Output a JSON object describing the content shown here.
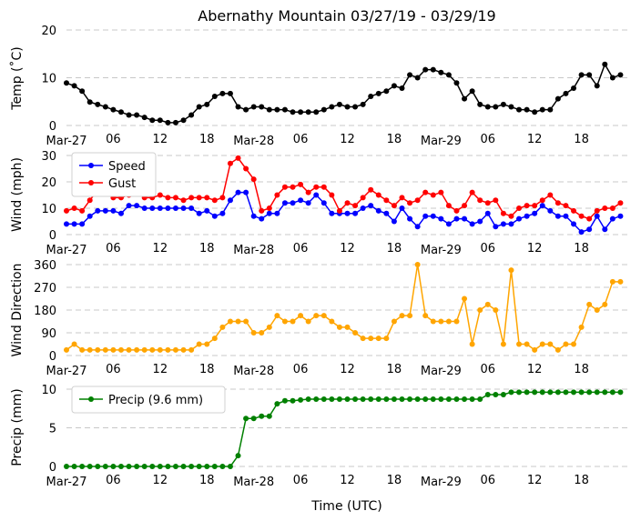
{
  "chart_data": {
    "title": "Abernathy Mountain 03/27/19 - 03/29/19",
    "xlabel": "Time (UTC)",
    "x_start_hour": 0,
    "x_end_hour": 72,
    "step_hours": 1,
    "x_ticks": [
      {
        "hour": 0,
        "label": "Mar-27"
      },
      {
        "hour": 6,
        "label": "06"
      },
      {
        "hour": 12,
        "label": "12"
      },
      {
        "hour": 18,
        "label": "18"
      },
      {
        "hour": 24,
        "label": "Mar-28"
      },
      {
        "hour": 30,
        "label": "06"
      },
      {
        "hour": 36,
        "label": "12"
      },
      {
        "hour": 42,
        "label": "18"
      },
      {
        "hour": 48,
        "label": "Mar-29"
      },
      {
        "hour": 54,
        "label": "06"
      },
      {
        "hour": 60,
        "label": "12"
      },
      {
        "hour": 66,
        "label": "18"
      }
    ],
    "panels": [
      {
        "type": "line",
        "ylabel": "Temp ($^\\circ$C)",
        "ylabel_display": "Temp (˚C)",
        "ylim": [
          0,
          20
        ],
        "yticks": [
          0,
          10,
          20
        ],
        "grid": true,
        "legend": null,
        "series": [
          {
            "name": "Temp",
            "color": "#000000",
            "values": [
              8.9,
              8.3,
              7.2,
              4.9,
              4.4,
              3.9,
              3.3,
              2.8,
              2.2,
              2.2,
              1.7,
              1.1,
              1.1,
              0.6,
              0.6,
              1.1,
              2.2,
              3.9,
              4.4,
              6.1,
              6.7,
              6.7,
              3.9,
              3.3,
              3.9,
              3.9,
              3.3,
              3.3,
              3.3,
              2.8,
              2.8,
              2.8,
              2.8,
              3.3,
              3.9,
              4.4,
              3.9,
              3.9,
              4.4,
              6.1,
              6.7,
              7.2,
              8.3,
              7.8,
              10.6,
              10.0,
              11.7,
              11.7,
              11.1,
              10.6,
              8.9,
              5.6,
              7.2,
              4.4,
              3.9,
              3.9,
              4.4,
              3.9,
              3.3,
              3.3,
              2.8,
              3.3,
              3.3,
              5.6,
              6.7,
              7.8,
              10.6,
              10.6,
              8.3,
              12.8,
              10.0,
              10.6
            ]
          }
        ]
      },
      {
        "type": "line",
        "ylabel": "Wind (mph)",
        "ylim": [
          0,
          30
        ],
        "yticks": [
          0,
          10,
          20,
          30
        ],
        "grid": true,
        "legend": "top-left",
        "series": [
          {
            "name": "Speed",
            "color": "#0000ff",
            "values": [
              4,
              4,
              4,
              7,
              9,
              9,
              9,
              8,
              11,
              11,
              10,
              10,
              10,
              10,
              10,
              10,
              10,
              8,
              9,
              7,
              8,
              13,
              16,
              16,
              7,
              6,
              8,
              8,
              12,
              12,
              13,
              12,
              15,
              12,
              8,
              8,
              8,
              8,
              10,
              11,
              9,
              8,
              5,
              10,
              6,
              3,
              7,
              7,
              6,
              4,
              6,
              6,
              4,
              5,
              8,
              3,
              4,
              4,
              6,
              7,
              8,
              11,
              9,
              7,
              7,
              4,
              1,
              2,
              7,
              2,
              6,
              7
            ]
          },
          {
            "name": "Gust",
            "color": "#ff0000",
            "values": [
              9,
              10,
              9,
              13,
              17,
              17,
              14,
              14,
              15,
              17,
              14,
              14,
              15,
              14,
              14,
              13,
              14,
              14,
              14,
              13,
              14,
              27,
              29,
              25,
              21,
              9,
              10,
              15,
              18,
              18,
              19,
              16,
              18,
              18,
              15,
              9,
              12,
              11,
              14,
              17,
              15,
              13,
              11,
              14,
              12,
              13,
              16,
              15,
              16,
              11,
              9,
              11,
              16,
              13,
              12,
              13,
              8,
              7,
              10,
              11,
              11,
              13,
              15,
              12,
              11,
              9,
              7,
              6,
              9,
              10,
              10,
              12
            ]
          }
        ]
      },
      {
        "type": "scatter-line",
        "ylabel": "Wind Direction",
        "ylim": [
          0,
          360
        ],
        "yticks": [
          0,
          90,
          180,
          270,
          360
        ],
        "grid": true,
        "legend": null,
        "series": [
          {
            "name": "Direction",
            "color": "#ffa500",
            "values": [
              22,
              45,
              22,
              22,
              22,
              22,
              22,
              22,
              22,
              22,
              22,
              22,
              22,
              22,
              22,
              22,
              22,
              45,
              45,
              68,
              112,
              135,
              135,
              135,
              90,
              90,
              112,
              158,
              135,
              135,
              158,
              135,
              158,
              158,
              135,
              112,
              112,
              90,
              68,
              68,
              68,
              68,
              135,
              158,
              158,
              360,
              158,
              135,
              135,
              135,
              135,
              225,
              45,
              180,
              202,
              180,
              45,
              338,
              45,
              45,
              22,
              45,
              45,
              22,
              45,
              45,
              112,
              202,
              180,
              202,
              292,
              292
            ]
          }
        ]
      },
      {
        "type": "line",
        "ylabel": "Precip (mm)",
        "ylim": [
          0,
          10
        ],
        "yticks": [
          0,
          5,
          10
        ],
        "grid": true,
        "legend": "top-left",
        "series": [
          {
            "name": "Precip (9.6 mm)",
            "color": "#008000",
            "values": [
              0,
              0,
              0,
              0,
              0,
              0,
              0,
              0,
              0,
              0,
              0,
              0,
              0,
              0,
              0,
              0,
              0,
              0,
              0,
              0,
              0,
              0,
              1.4,
              6.2,
              6.2,
              6.5,
              6.5,
              8.1,
              8.5,
              8.5,
              8.6,
              8.7,
              8.7,
              8.7,
              8.7,
              8.7,
              8.7,
              8.7,
              8.7,
              8.7,
              8.7,
              8.7,
              8.7,
              8.7,
              8.7,
              8.7,
              8.7,
              8.7,
              8.7,
              8.7,
              8.7,
              8.7,
              8.7,
              8.7,
              9.3,
              9.3,
              9.3,
              9.6,
              9.6,
              9.6,
              9.6,
              9.6,
              9.6,
              9.6,
              9.6,
              9.6,
              9.6,
              9.6,
              9.6,
              9.6,
              9.6,
              9.6
            ]
          }
        ]
      }
    ]
  }
}
